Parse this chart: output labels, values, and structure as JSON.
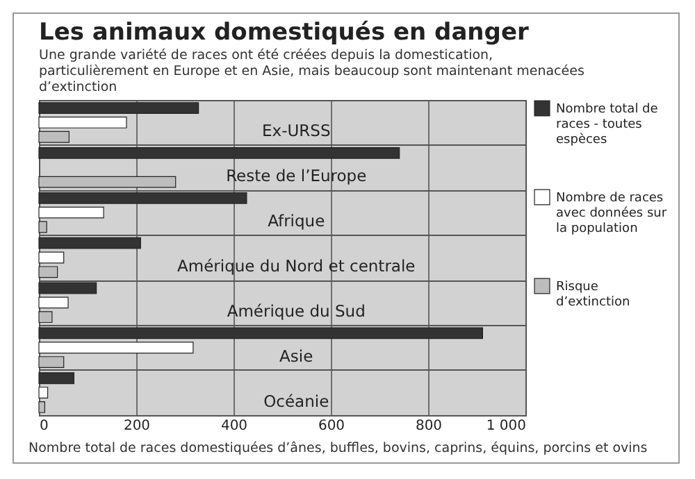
{
  "chart_data": {
    "type": "bar",
    "orientation": "horizontal",
    "title": "Les animaux domestiqués en danger",
    "subtitle": "Une grande variété de races ont été créées depuis la domestication, particulièrement en Europe et en Asie, mais beaucoup sont maintenant menacées d’extinction",
    "xlabel": "Nombre total de races domestiquées d’ânes, buffles, bovins, caprins, équins, porcins et ovins",
    "categories": [
      "Ex-URSS",
      "Reste de l’Europe",
      "Afrique",
      "Amérique du Nord et centrale",
      "Amérique du Sud",
      "Asie",
      "Océanie"
    ],
    "series": [
      {
        "name": "Nombre total de races - toutes espèces",
        "color": "#333333",
        "values": [
          328,
          741,
          427,
          209,
          118,
          912,
          72
        ]
      },
      {
        "name": "Nombre de races avec données sur la population",
        "color": "#ffffff",
        "values": [
          180,
          null,
          133,
          51,
          60,
          317,
          18
        ]
      },
      {
        "name": "Risque d’extinction",
        "color": "#bdbdbd",
        "values": [
          62,
          281,
          16,
          38,
          27,
          51,
          12
        ]
      }
    ],
    "xlim": [
      0,
      1000
    ],
    "xticks": [
      0,
      200,
      400,
      600,
      800,
      {
        "value": 1000,
        "label": "1 000"
      }
    ],
    "grid": true,
    "legend": "right"
  }
}
